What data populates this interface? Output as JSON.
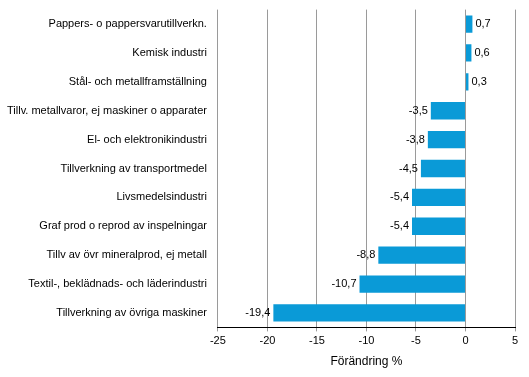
{
  "chart_data": {
    "type": "bar",
    "orientation": "horizontal",
    "x_label": "Förändring %",
    "categories": [
      "Pappers- o pappersvarutillverkn.",
      "Kemisk industri",
      "Stål- och metallframställning",
      "Tillv. metallvaror, ej maskiner o apparater",
      "El- och elektronikindustri",
      "Tillverkning av transportmedel",
      "Livsmedelsindustri",
      "Graf prod o reprod av inspelningar",
      "Tillv av övr mineralprod, ej metall",
      "Textil-, beklädnads- och läderindustri",
      "Tillverkning av övriga maskiner"
    ],
    "values": [
      0.7,
      0.6,
      0.3,
      -3.5,
      -3.8,
      -4.5,
      -5.4,
      -5.4,
      -8.8,
      -10.7,
      -19.4
    ],
    "value_labels": [
      "0,7",
      "0,6",
      "0,3",
      "-3,5",
      "-3,8",
      "-4,5",
      "-5,4",
      "-5,4",
      "-8,8",
      "-10,7",
      "-19,4"
    ],
    "data_labels": true,
    "color": "#0a9ad7",
    "xlim": [
      -25,
      5
    ],
    "xticks": [
      -25,
      -20,
      -15,
      -10,
      -5,
      0,
      5
    ],
    "grid": true
  }
}
